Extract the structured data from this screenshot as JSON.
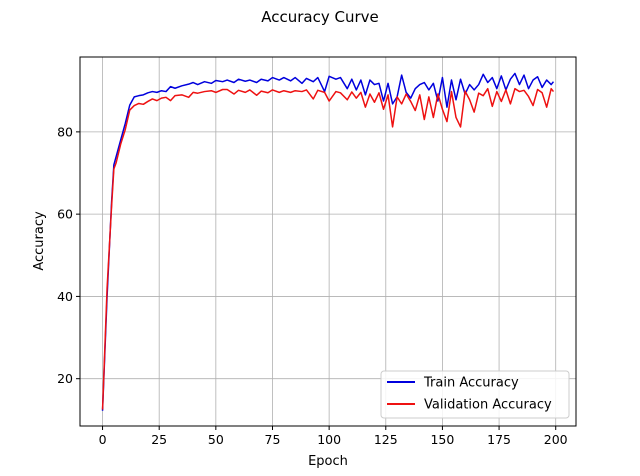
{
  "chart_data": {
    "type": "line",
    "title": "Accuracy Curve",
    "xlabel": "Epoch",
    "ylabel": "Accuracy",
    "xlim": [
      -9.95,
      208.95
    ],
    "ylim": [
      8.5,
      98.2
    ],
    "xticks": [
      0,
      25,
      50,
      75,
      100,
      125,
      150,
      175,
      200
    ],
    "yticks": [
      20,
      40,
      60,
      80
    ],
    "grid": true,
    "legend_position": "lower-right",
    "series": [
      {
        "name": "Train Accuracy",
        "color": "#0000dd",
        "x": [
          0,
          2,
          4,
          5,
          6,
          8,
          10,
          12,
          14,
          16,
          18,
          20,
          22,
          24,
          26,
          28,
          30,
          32,
          35,
          38,
          40,
          42,
          45,
          48,
          50,
          53,
          55,
          58,
          60,
          63,
          65,
          68,
          70,
          73,
          75,
          78,
          80,
          83,
          85,
          88,
          90,
          93,
          95,
          98,
          100,
          103,
          105,
          108,
          110,
          112,
          114,
          116,
          118,
          120,
          122,
          124,
          126,
          128,
          130,
          132,
          134,
          136,
          138,
          140,
          142,
          144,
          146,
          148,
          150,
          152,
          154,
          156,
          158,
          160,
          162,
          164,
          166,
          168,
          170,
          172,
          174,
          176,
          178,
          180,
          182,
          184,
          186,
          188,
          190,
          192,
          194,
          196,
          198,
          199
        ],
        "values": [
          12.2,
          40,
          63,
          72,
          74,
          78,
          82,
          86.5,
          88.5,
          88.8,
          89,
          89.5,
          89.8,
          89.6,
          90,
          89.8,
          91,
          90.6,
          91.2,
          91.6,
          92,
          91.5,
          92.2,
          91.8,
          92.5,
          92.2,
          92.6,
          92,
          92.8,
          92.3,
          92.6,
          92,
          92.8,
          92.4,
          93.2,
          92.6,
          93.2,
          92.4,
          93.2,
          91.8,
          93,
          92.2,
          93.2,
          89.8,
          93.5,
          92.8,
          93.2,
          90.5,
          92.8,
          90.2,
          92.6,
          89,
          92.6,
          91.5,
          91.8,
          87.5,
          91.8,
          86.8,
          88.5,
          93.8,
          89.6,
          88.2,
          90.5,
          91.5,
          92,
          90.2,
          91.8,
          87.5,
          93.2,
          86,
          92.6,
          87.8,
          92.8,
          89.2,
          91.5,
          90.2,
          91.5,
          94,
          92,
          93.2,
          90.5,
          93.6,
          90.2,
          92.8,
          94.2,
          91.5,
          93.8,
          90.5,
          92.6,
          93.4,
          90.8,
          92.6,
          91.5,
          92.2
        ]
      },
      {
        "name": "Validation Accuracy",
        "color": "#ee1111",
        "x": [
          0,
          2,
          4,
          5,
          6,
          8,
          10,
          12,
          14,
          16,
          18,
          20,
          22,
          24,
          26,
          28,
          30,
          32,
          35,
          38,
          40,
          42,
          45,
          48,
          50,
          53,
          55,
          58,
          60,
          63,
          65,
          68,
          70,
          73,
          75,
          78,
          80,
          83,
          85,
          88,
          90,
          93,
          95,
          98,
          100,
          103,
          105,
          108,
          110,
          112,
          114,
          116,
          118,
          120,
          122,
          124,
          126,
          128,
          130,
          132,
          134,
          136,
          138,
          140,
          142,
          144,
          146,
          148,
          150,
          152,
          154,
          156,
          158,
          160,
          162,
          164,
          166,
          168,
          170,
          172,
          174,
          176,
          178,
          180,
          182,
          184,
          186,
          188,
          190,
          192,
          194,
          196,
          198,
          199
        ],
        "values": [
          12.5,
          42,
          62,
          71,
          72.5,
          77,
          80.5,
          85.3,
          86.4,
          86.9,
          86.7,
          87.4,
          88,
          87.6,
          88.2,
          88.4,
          87.6,
          88.8,
          89,
          88.4,
          89.6,
          89.4,
          89.8,
          90,
          89.6,
          90.3,
          90.3,
          89.2,
          90.1,
          89.6,
          90.2,
          88.9,
          89.9,
          89.5,
          90.2,
          89.6,
          90,
          89.6,
          90,
          89.8,
          90.2,
          88,
          90.1,
          89.6,
          87.5,
          89.8,
          89.5,
          87.8,
          89.7,
          88.2,
          89.6,
          86,
          89.2,
          87.2,
          89.5,
          85.5,
          89,
          81.2,
          88.5,
          86.8,
          89.2,
          87.4,
          85.2,
          89,
          83,
          88.5,
          83.5,
          89.2,
          85.5,
          82.5,
          89.8,
          83.5,
          81.2,
          89.9,
          87.8,
          84.8,
          89.4,
          88.8,
          90.5,
          86.2,
          89.8,
          87.4,
          90.2,
          86.8,
          90.5,
          89.8,
          90.1,
          88.6,
          86.4,
          90.3,
          89.5,
          86,
          90.5,
          89.8
        ]
      }
    ]
  }
}
